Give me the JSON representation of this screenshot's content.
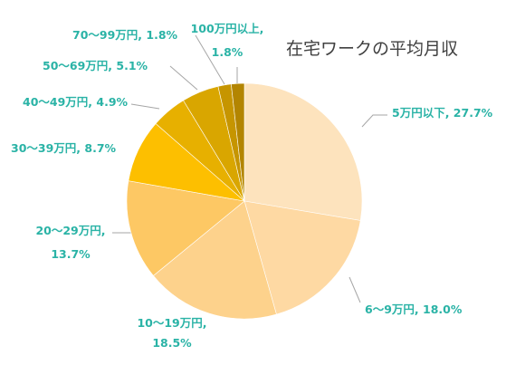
{
  "chart_data": {
    "type": "pie",
    "title": "在宅ワークの平均月収",
    "slices": [
      {
        "label": "5万円以下",
        "value": 27.7,
        "display": "27.7%",
        "color": "#fde3bd"
      },
      {
        "label": "6～9万円",
        "value": 18.0,
        "display": "18.0%",
        "color": "#fed9a3"
      },
      {
        "label": "10～19万円",
        "value": 18.5,
        "display": "18.5%",
        "color": "#fdd28c"
      },
      {
        "label": "20～29万円",
        "value": 13.7,
        "display": "13.7%",
        "color": "#fdc864"
      },
      {
        "label": "30～39万円",
        "value": 8.7,
        "display": "8.7%",
        "color": "#fdbf00"
      },
      {
        "label": "40～49万円",
        "value": 4.9,
        "display": "4.9%",
        "color": "#e7b000"
      },
      {
        "label": "50～69万円",
        "value": 5.1,
        "display": "5.1%",
        "color": "#d9a600"
      },
      {
        "label": "70～99万円",
        "value": 1.8,
        "display": "1.8%",
        "color": "#c69500"
      },
      {
        "label": "100万円以上",
        "value": 1.8,
        "display": "1.8%",
        "color": "#b38500"
      }
    ],
    "start_angle_deg": 0,
    "direction": "clockwise",
    "legend": "none"
  }
}
